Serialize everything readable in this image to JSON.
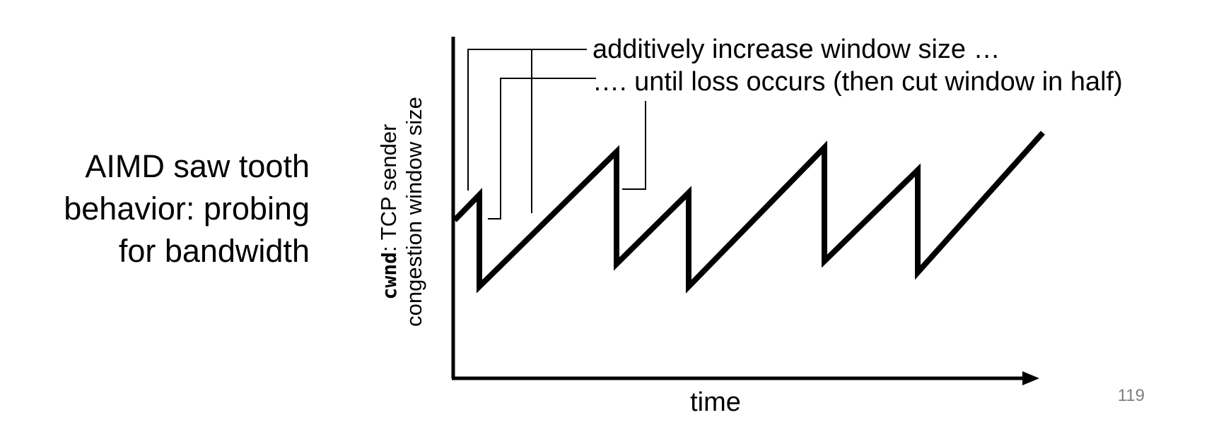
{
  "slide": {
    "title_lines": [
      "AIMD saw tooth",
      "behavior: probing",
      "for bandwidth"
    ],
    "page_number": "119"
  },
  "diagram": {
    "y_axis_label_code": "cwnd",
    "y_axis_label_rest": ": TCP sender",
    "y_axis_label_line2": "congestion window size",
    "x_axis_label": "time",
    "annotation_increase": "additively increase window size …",
    "annotation_loss": "…. until loss occurs (then cut window in half)"
  },
  "colors": {
    "ink": "#000000",
    "page_number": "#7f7f7f",
    "background": "#ffffff"
  }
}
